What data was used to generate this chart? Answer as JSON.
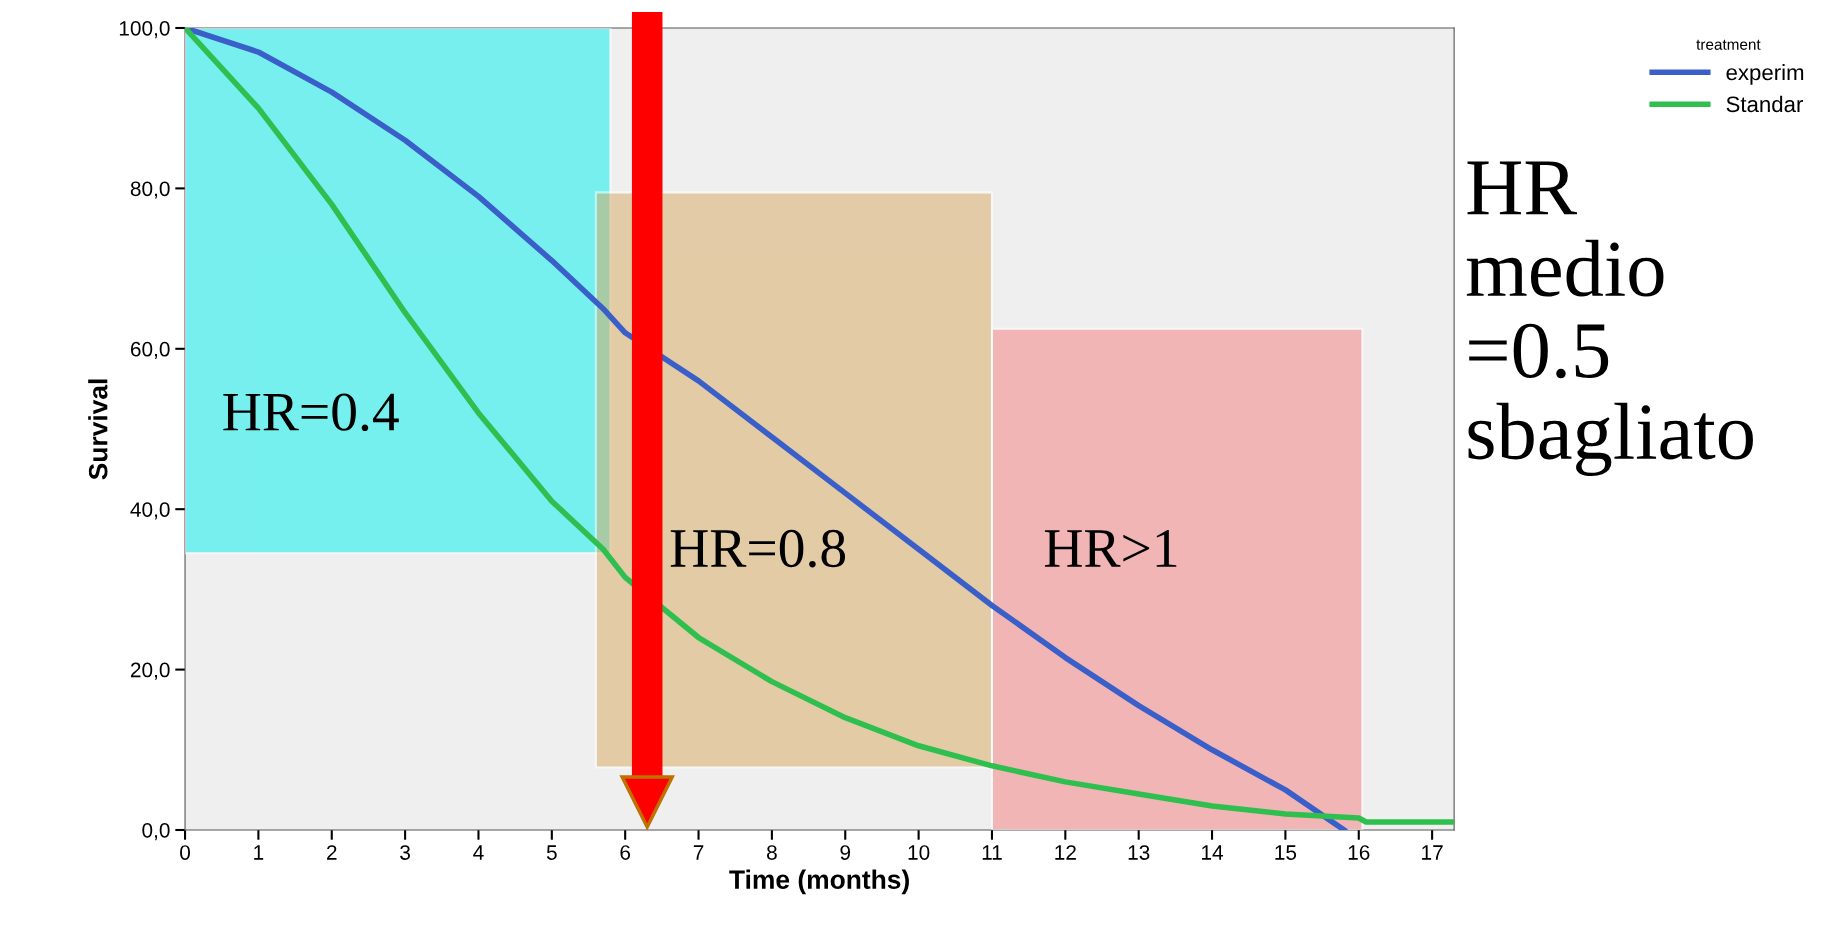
{
  "chart_data": {
    "type": "line",
    "xlabel": "Time (months)",
    "ylabel": "Survival",
    "legend_title": "treatment",
    "legend": "top right",
    "xlim": [
      0,
      17.3
    ],
    "ylim": [
      0,
      100
    ],
    "xticks": [
      0,
      1,
      2,
      3,
      4,
      5,
      6,
      7,
      8,
      9,
      10,
      11,
      12,
      13,
      14,
      15,
      16,
      17
    ],
    "yticks": [
      {
        "value": 0,
        "label": "0,0"
      },
      {
        "value": 20,
        "label": "20,0"
      },
      {
        "value": 40,
        "label": "40,0"
      },
      {
        "value": 60,
        "label": "60,0"
      },
      {
        "value": 80,
        "label": "80,0"
      },
      {
        "value": 100,
        "label": "100,0"
      }
    ],
    "grid": false,
    "series": [
      {
        "name": "experim",
        "color": "#3a5fc8",
        "x": [
          0,
          1,
          2,
          3,
          4,
          5,
          5.7,
          6,
          7,
          8,
          9,
          10,
          11,
          12,
          13,
          14,
          15,
          15.8
        ],
        "values": [
          100,
          97,
          92,
          86,
          79,
          71,
          65,
          62,
          56,
          49,
          42,
          35,
          28,
          21.5,
          15.5,
          10,
          5,
          0
        ]
      },
      {
        "name": "Standar",
        "color": "#2fbf4f",
        "x": [
          0,
          1,
          2,
          3,
          4,
          5,
          5.7,
          6,
          7,
          8,
          9,
          10,
          11,
          12,
          13,
          14,
          15,
          16,
          16.1,
          17.3
        ],
        "values": [
          100,
          90,
          78,
          64.5,
          52,
          41,
          35,
          31.5,
          24,
          18.5,
          14,
          10.5,
          8,
          6,
          4.5,
          3,
          2,
          1.5,
          1,
          1
        ]
      }
    ],
    "bands": [
      {
        "axis": "x",
        "from": 0,
        "to": 5.8,
        "label": "HR=0.4",
        "color": "#00f0f0"
      },
      {
        "axis": "x",
        "from": 5.6,
        "to": 11,
        "label": "HR=0.8",
        "color": "#d8a860"
      },
      {
        "axis": "x",
        "from": 11,
        "to": 16.05,
        "label": "HR>1",
        "color": "#f47c7c"
      }
    ],
    "ref_lines": [
      {
        "axis": "x",
        "value": 6.3,
        "color": "#ff0000"
      }
    ],
    "annotations": [
      "HR\nmedio\n=0.5\nsbagliato"
    ]
  }
}
